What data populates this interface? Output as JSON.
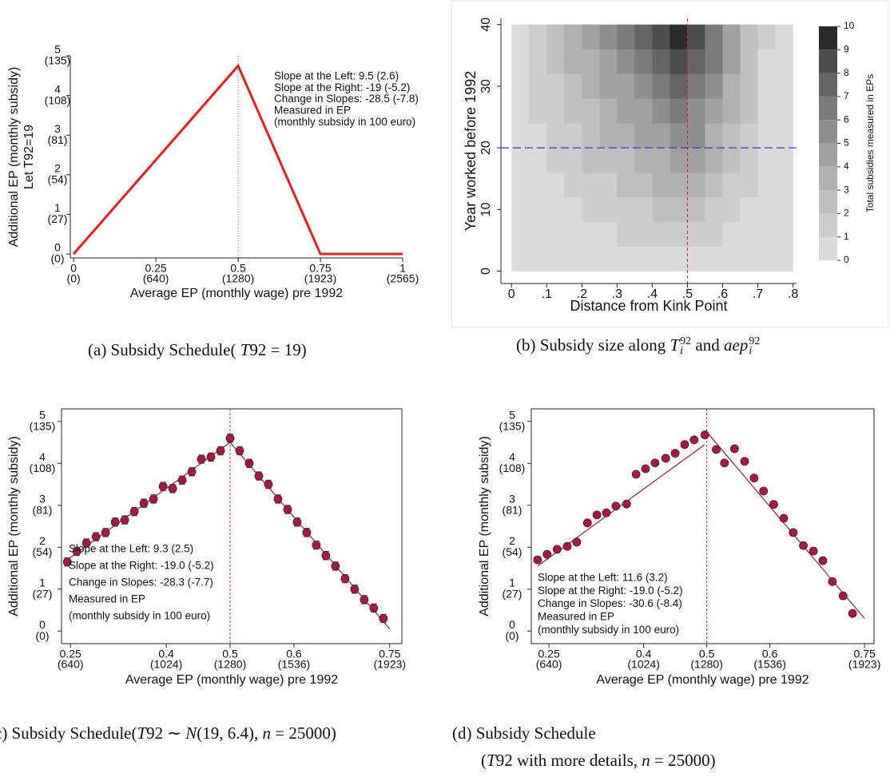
{
  "chart_data": [
    {
      "type": "line",
      "caption": [
        "(a) Subsidy Schedule(",
        "T",
        "92 = 19)"
      ],
      "x": [
        0,
        0.5,
        0.75,
        1
      ],
      "values": [
        0,
        4.75,
        0,
        0
      ],
      "color": "#ee1c1c",
      "xlim": [
        -0.01,
        1
      ],
      "ylim": [
        -0.1,
        5
      ],
      "xticks": [
        {
          "value": 0,
          "label": "0",
          "note": "(0)"
        },
        {
          "value": 0.25,
          "label": "0.25",
          "note": "(640)"
        },
        {
          "value": 0.5,
          "label": "0.5",
          "note": "(1280)"
        },
        {
          "value": 0.75,
          "label": "0.75",
          "note": "(1923)"
        },
        {
          "value": 1,
          "label": "1",
          "note": "(2565)"
        }
      ],
      "yticks": [
        {
          "value": 0,
          "label": "0",
          "note": "(0)"
        },
        {
          "value": 1,
          "label": "1",
          "note": "(27)"
        },
        {
          "value": 2,
          "label": "2",
          "note": "(54)"
        },
        {
          "value": 3,
          "label": "3",
          "note": "(81)"
        },
        {
          "value": 4,
          "label": "4",
          "note": "(108)"
        },
        {
          "value": 5,
          "label": "5",
          "note": "(135)"
        }
      ],
      "xlabel": "Average EP (monthly wage) pre 1992",
      "ylabel": [
        "Additional EP (monthly subsidy)",
        "Let T92=19"
      ],
      "vline": {
        "x": 0.5,
        "color": "#666666"
      },
      "annotation": [
        "Slope at the Left: 9.5 (2.6)",
        "Slope at the Right: -19 (-5.2)",
        "Change in Slopes: -28.5 (-7.8)",
        "Measured in EP",
        "(monthly subsidy in 100 euro)"
      ]
    },
    {
      "type": "contour",
      "caption": [
        "(b) Subsidy size along",
        "T",
        "92",
        "i",
        "and",
        "aep",
        "92",
        "i"
      ],
      "xbins": [
        0,
        0.05,
        0.1,
        0.15,
        0.2,
        0.25,
        0.3,
        0.35,
        0.4,
        0.45,
        0.5,
        0.55,
        0.6,
        0.65,
        0.7,
        0.75,
        0.8
      ],
      "ybins": [
        0,
        4,
        8,
        12,
        16,
        20,
        24,
        28,
        32,
        36,
        40
      ],
      "z": [
        [
          0,
          0.1,
          0.1,
          0.2,
          0.2,
          0.3,
          0.3,
          0.4,
          0.4,
          0.5,
          0.5,
          0.4,
          0.3,
          0.2,
          0.1,
          0
        ],
        [
          0.1,
          0.2,
          0.4,
          0.5,
          0.7,
          0.8,
          1.0,
          1.1,
          1.3,
          1.4,
          1.4,
          1.1,
          0.8,
          0.5,
          0.2,
          0
        ],
        [
          0.1,
          0.4,
          0.6,
          0.9,
          1.1,
          1.4,
          1.6,
          1.9,
          2.1,
          2.4,
          2.3,
          1.8,
          1.3,
          0.8,
          0.3,
          0
        ],
        [
          0.2,
          0.5,
          0.9,
          1.2,
          1.6,
          1.9,
          2.3,
          2.6,
          3.0,
          3.3,
          3.2,
          2.5,
          1.8,
          1.1,
          0.4,
          0
        ],
        [
          0.2,
          0.7,
          1.1,
          1.6,
          2.0,
          2.5,
          2.9,
          3.4,
          3.8,
          4.3,
          4.1,
          3.2,
          2.3,
          1.4,
          0.5,
          0
        ],
        [
          0.3,
          0.8,
          1.4,
          1.9,
          2.5,
          3.0,
          3.6,
          4.1,
          4.7,
          5.2,
          5.0,
          3.9,
          2.8,
          1.7,
          0.6,
          0
        ],
        [
          0.3,
          1.0,
          1.6,
          2.3,
          2.9,
          3.6,
          4.2,
          4.9,
          5.5,
          6.2,
          5.9,
          4.6,
          3.3,
          2.0,
          0.7,
          0
        ],
        [
          0.4,
          1.1,
          1.9,
          2.6,
          3.4,
          4.1,
          4.9,
          5.6,
          6.4,
          7.1,
          6.8,
          5.3,
          3.8,
          2.3,
          0.8,
          0
        ],
        [
          0.4,
          1.3,
          2.1,
          3.0,
          3.8,
          4.7,
          5.5,
          6.4,
          7.2,
          8.1,
          7.7,
          6.0,
          4.3,
          2.6,
          0.9,
          0
        ],
        [
          0.5,
          1.4,
          2.4,
          3.3,
          4.3,
          5.2,
          6.2,
          7.1,
          8.1,
          9.0,
          8.6,
          6.7,
          4.8,
          2.9,
          1.0,
          0
        ]
      ],
      "colors": [
        "#dadada",
        "#cdcdcd",
        "#c0c0c0",
        "#b1b1b1",
        "#a1a1a1",
        "#8f8f8f",
        "#7b7b7b",
        "#656565",
        "#4d4d4d",
        "#2b2b2b"
      ],
      "clevels": [
        0,
        1,
        2,
        3,
        4,
        5,
        6,
        7,
        8,
        9,
        10
      ],
      "colorbar_label": "Total subsidies measured in EPs",
      "xlim": [
        -0.03,
        0.81
      ],
      "ylim": [
        -2,
        41
      ],
      "xticks": [
        0,
        {
          "value": 0.1,
          "label": ".1"
        },
        {
          "value": 0.2,
          "label": ".2"
        },
        {
          "value": 0.3,
          "label": ".3"
        },
        {
          "value": 0.4,
          "label": ".4"
        },
        {
          "value": 0.5,
          "label": ".5"
        },
        {
          "value": 0.6,
          "label": ".6"
        },
        {
          "value": 0.7,
          "label": ".7"
        },
        {
          "value": 0.8,
          "label": ".8"
        }
      ],
      "yticks": [
        0,
        10,
        20,
        30,
        40
      ],
      "xlabel": "Distance from Kink Point",
      "ylabel": "Year worked before 1992",
      "vline": {
        "x": 0.5,
        "color": "#dd2222"
      },
      "hline": {
        "y": 20,
        "color": "#3333dd"
      }
    },
    {
      "type": "scatter",
      "caption": [
        "(c) Subsidy Schedule(",
        "T",
        "92 ∼",
        "N",
        "(19, 6.4),",
        "n",
        "= 25000)"
      ],
      "x": [
        0.245,
        0.26,
        0.275,
        0.29,
        0.305,
        0.32,
        0.335,
        0.35,
        0.365,
        0.38,
        0.395,
        0.41,
        0.425,
        0.44,
        0.455,
        0.47,
        0.485,
        0.5,
        0.515,
        0.53,
        0.545,
        0.56,
        0.575,
        0.59,
        0.605,
        0.62,
        0.635,
        0.65,
        0.665,
        0.68,
        0.695,
        0.71,
        0.725,
        0.74
      ],
      "values": [
        1.65,
        1.9,
        2.1,
        2.25,
        2.35,
        2.6,
        2.65,
        2.85,
        3.05,
        3.15,
        3.45,
        3.4,
        3.6,
        3.8,
        4.1,
        4.15,
        4.3,
        4.6,
        4.3,
        4.0,
        3.7,
        3.5,
        3.15,
        2.9,
        2.6,
        2.35,
        2.05,
        1.8,
        1.55,
        1.25,
        1.0,
        0.75,
        0.55,
        0.3
      ],
      "errors": [
        0.1,
        0.1,
        0.1,
        0.1,
        0.1,
        0.1,
        0.1,
        0.1,
        0.1,
        0.1,
        0.1,
        0.1,
        0.1,
        0.1,
        0.1,
        0.1,
        0.1,
        0.1,
        0.1,
        0.1,
        0.1,
        0.1,
        0.1,
        0.1,
        0.1,
        0.1,
        0.1,
        0.1,
        0.1,
        0.1,
        0.1,
        0.1,
        0.1,
        0.1
      ],
      "color": "#a01c40",
      "fit": [
        {
          "x": [
            0.245,
            0.5
          ],
          "values": [
            1.7,
            4.5
          ]
        },
        {
          "x": [
            0.5,
            0.75
          ],
          "values": [
            4.5,
            0.05
          ]
        }
      ],
      "xlim": [
        0.236,
        0.769
      ],
      "ylim": [
        -0.3,
        5.3
      ],
      "xticks": [
        {
          "value": 0.25,
          "label": "0.25",
          "note": "(640)"
        },
        {
          "value": 0.4,
          "label": "0.4",
          "note": "(1024)"
        },
        {
          "value": 0.5,
          "label": "0.5",
          "note": "(1280)"
        },
        {
          "value": 0.6,
          "label": "0.6",
          "note": "(1536)"
        },
        {
          "value": 0.75,
          "label": "0.75",
          "note": "(1923)"
        }
      ],
      "yticks": [
        {
          "value": 0,
          "label": "0",
          "note": "(0)"
        },
        {
          "value": 1,
          "label": "1",
          "note": "(27)"
        },
        {
          "value": 2,
          "label": "2",
          "note": "(54)"
        },
        {
          "value": 3,
          "label": "3",
          "note": "(81)"
        },
        {
          "value": 4,
          "label": "4",
          "note": "(108)"
        },
        {
          "value": 5,
          "label": "5",
          "note": "(135)"
        }
      ],
      "xlabel": "Average EP (monthly wage) pre 1992",
      "ylabel": "Additional EP (monthly subsidy)",
      "vline": {
        "x": 0.5,
        "color": "#dd2222"
      },
      "annotation": [
        "Slope at the Left: 9.3 (2.5)",
        "Slope at the Right: -19.0 (-5.2)",
        "Change in Slopes: -28.3 (-7.7)",
        "Measured in EP",
        "(monthly subsidy in 100 euro)"
      ]
    },
    {
      "type": "scatter",
      "caption": [
        "(d) Subsidy Schedule",
        "(",
        "T",
        "92 with more details,",
        "n",
        "= 25000)"
      ],
      "x": [
        0.232,
        0.247,
        0.263,
        0.279,
        0.294,
        0.311,
        0.326,
        0.341,
        0.356,
        0.373,
        0.388,
        0.403,
        0.418,
        0.435,
        0.45,
        0.465,
        0.48,
        0.497,
        0.515,
        0.528,
        0.544,
        0.56,
        0.575,
        0.59,
        0.606,
        0.622,
        0.637,
        0.653,
        0.669,
        0.684,
        0.699,
        0.716,
        0.731
      ],
      "values": [
        1.7,
        1.83,
        1.95,
        2.02,
        2.12,
        2.58,
        2.77,
        2.82,
        2.98,
        3.03,
        3.74,
        3.87,
        4.01,
        4.12,
        4.24,
        4.45,
        4.56,
        4.68,
        4.33,
        4.01,
        4.35,
        4.05,
        3.65,
        3.34,
        3.02,
        2.69,
        2.35,
        2.04,
        1.91,
        1.68,
        1.18,
        0.84,
        0.42
      ],
      "color": "#a01c40",
      "fit": [
        {
          "x": [
            0.232,
            0.497
          ],
          "values": [
            1.55,
            4.45
          ]
        },
        {
          "x": [
            0.5,
            0.75
          ],
          "values": [
            4.75,
            0.3
          ]
        }
      ],
      "xlim": [
        0.222,
        0.765
      ],
      "ylim": [
        -0.3,
        5.3
      ],
      "xticks": [
        {
          "value": 0.25,
          "label": "0.25",
          "note": "(640)"
        },
        {
          "value": 0.4,
          "label": "0.4",
          "note": "(1024)"
        },
        {
          "value": 0.5,
          "label": "0.5",
          "note": "(1280)"
        },
        {
          "value": 0.6,
          "label": "0.6",
          "note": "(1536)"
        },
        {
          "value": 0.75,
          "label": "0.75",
          "note": "(1923)"
        }
      ],
      "yticks": [
        {
          "value": 0,
          "label": "0",
          "note": "(0)"
        },
        {
          "value": 1,
          "label": "1",
          "note": "(27)"
        },
        {
          "value": 2,
          "label": "2",
          "note": "(54)"
        },
        {
          "value": 3,
          "label": "3",
          "note": "(81)"
        },
        {
          "value": 4,
          "label": "4",
          "note": "(108)"
        },
        {
          "value": 5,
          "label": "5",
          "note": "(135)"
        }
      ],
      "xlabel": "Average EP (monthly wage) pre 1992",
      "ylabel": "Additional EP (monthly subsidy)",
      "vline": {
        "x": 0.5,
        "color": "#dd2222"
      },
      "annotation": [
        "Slope at the Left: 11.6 (3.2)",
        "Slope at the Right: -19.0 (-5.2)",
        "Change in Slopes: -30.6 (-8.4)",
        "Measured in EP",
        "(monthly subsidy in 100 euro)"
      ]
    }
  ]
}
